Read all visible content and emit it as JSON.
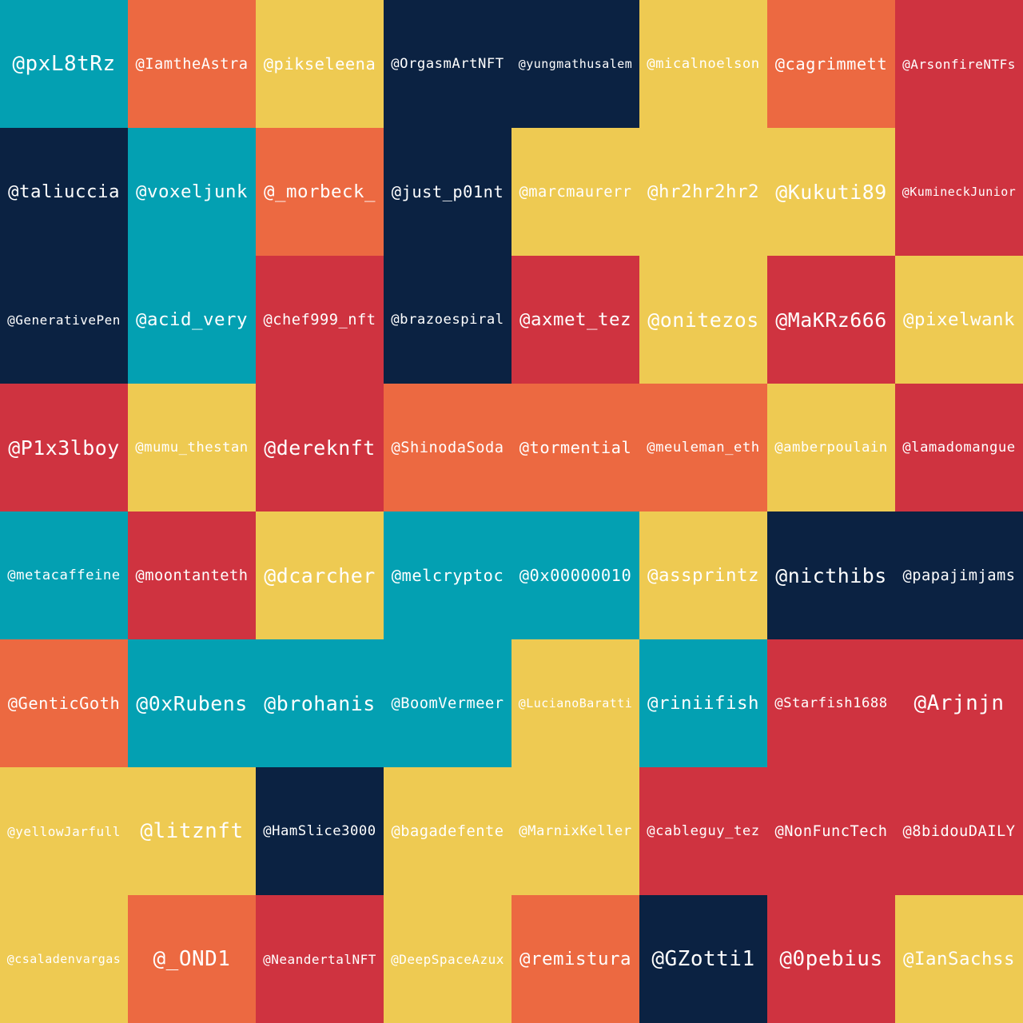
{
  "palette": {
    "teal": "#03a0b2",
    "orange": "#ec6941",
    "yellow": "#eeca52",
    "navy": "#0b2242",
    "red": "#cf3340"
  },
  "cells": [
    {
      "handle": "@pxL8tRz",
      "color": "teal"
    },
    {
      "handle": "@IamtheAstra",
      "color": "orange"
    },
    {
      "handle": "@pikseleena",
      "color": "yellow"
    },
    {
      "handle": "@OrgasmArtNFT",
      "color": "navy"
    },
    {
      "handle": "@yungmathusalem",
      "color": "navy"
    },
    {
      "handle": "@micalnoelson",
      "color": "yellow"
    },
    {
      "handle": "@cagrimmett",
      "color": "orange"
    },
    {
      "handle": "@ArsonfireNTFs",
      "color": "red"
    },
    {
      "handle": "@taliuccia",
      "color": "navy"
    },
    {
      "handle": "@voxeljunk",
      "color": "teal"
    },
    {
      "handle": "@_morbeck_",
      "color": "orange"
    },
    {
      "handle": "@just_p01nt",
      "color": "navy"
    },
    {
      "handle": "@marcmaurerr",
      "color": "yellow"
    },
    {
      "handle": "@hr2hr2hr2",
      "color": "yellow"
    },
    {
      "handle": "@Kukuti89",
      "color": "yellow"
    },
    {
      "handle": "@KumineckJunior",
      "color": "red"
    },
    {
      "handle": "@GenerativePen",
      "color": "navy"
    },
    {
      "handle": "@acid_very",
      "color": "teal"
    },
    {
      "handle": "@chef999_nft",
      "color": "red"
    },
    {
      "handle": "@brazoespiral",
      "color": "navy"
    },
    {
      "handle": "@axmet_tez",
      "color": "red"
    },
    {
      "handle": "@onitezos",
      "color": "yellow"
    },
    {
      "handle": "@MaKRz666",
      "color": "red"
    },
    {
      "handle": "@pixelwank",
      "color": "yellow"
    },
    {
      "handle": "@P1x3lboy",
      "color": "red"
    },
    {
      "handle": "@mumu_thestan",
      "color": "yellow"
    },
    {
      "handle": "@dereknft",
      "color": "red"
    },
    {
      "handle": "@ShinodaSoda",
      "color": "orange"
    },
    {
      "handle": "@tormential",
      "color": "orange"
    },
    {
      "handle": "@meuleman_eth",
      "color": "orange"
    },
    {
      "handle": "@amberpoulain",
      "color": "yellow"
    },
    {
      "handle": "@lamadomangue",
      "color": "red"
    },
    {
      "handle": "@metacaffeine",
      "color": "teal"
    },
    {
      "handle": "@moontanteth",
      "color": "red"
    },
    {
      "handle": "@dcarcher",
      "color": "yellow"
    },
    {
      "handle": "@melcryptoc",
      "color": "teal"
    },
    {
      "handle": "@0x00000010",
      "color": "teal"
    },
    {
      "handle": "@assprintz",
      "color": "yellow"
    },
    {
      "handle": "@nicthibs",
      "color": "navy"
    },
    {
      "handle": "@papajimjams",
      "color": "navy"
    },
    {
      "handle": "@GenticGoth",
      "color": "orange"
    },
    {
      "handle": "@0xRubens",
      "color": "teal"
    },
    {
      "handle": "@brohanis",
      "color": "teal"
    },
    {
      "handle": "@BoomVermeer",
      "color": "teal"
    },
    {
      "handle": "@LucianoBaratti",
      "color": "yellow"
    },
    {
      "handle": "@riniifish",
      "color": "teal"
    },
    {
      "handle": "@Starfish1688",
      "color": "red"
    },
    {
      "handle": "@Arjnjn",
      "color": "red"
    },
    {
      "handle": "@yellowJarfull",
      "color": "yellow"
    },
    {
      "handle": "@litznft",
      "color": "yellow"
    },
    {
      "handle": "@HamSlice3000",
      "color": "navy"
    },
    {
      "handle": "@bagadefente",
      "color": "yellow"
    },
    {
      "handle": "@MarnixKeller",
      "color": "yellow"
    },
    {
      "handle": "@cableguy_tez",
      "color": "red"
    },
    {
      "handle": "@NonFuncTech",
      "color": "red"
    },
    {
      "handle": "@8bidouDAILY",
      "color": "red"
    },
    {
      "handle": "@csaladenvargas",
      "color": "yellow"
    },
    {
      "handle": "@_OND1",
      "color": "orange"
    },
    {
      "handle": "@NeandertalNFT",
      "color": "red"
    },
    {
      "handle": "@DeepSpaceAzux",
      "color": "yellow"
    },
    {
      "handle": "@remistura",
      "color": "orange"
    },
    {
      "handle": "@GZotti1",
      "color": "navy"
    },
    {
      "handle": "@0pebius",
      "color": "red"
    },
    {
      "handle": "@IanSachss",
      "color": "yellow"
    }
  ]
}
